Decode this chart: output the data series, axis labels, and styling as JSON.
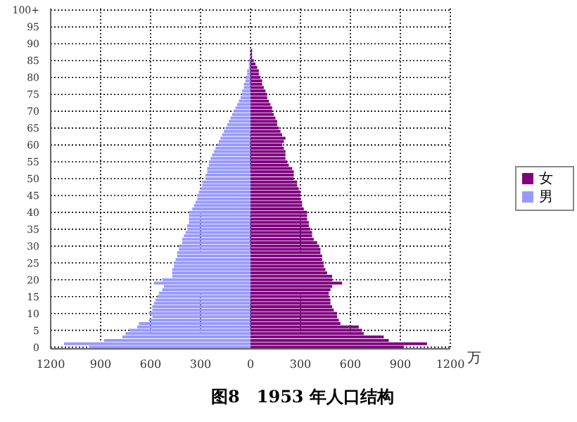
{
  "chart_data": {
    "type": "bar",
    "orientation": "horizontal",
    "stacked": true,
    "title": "图8　1953 年人口结构",
    "xlabel": "万",
    "categories": [
      "100+",
      null,
      null,
      null,
      null,
      "95",
      null,
      null,
      null,
      null,
      "90",
      null,
      null,
      null,
      null,
      "85",
      null,
      null,
      null,
      null,
      "80",
      null,
      null,
      null,
      null,
      "75",
      null,
      null,
      null,
      null,
      "70",
      null,
      null,
      null,
      null,
      "65",
      null,
      null,
      null,
      null,
      "60",
      null,
      null,
      null,
      null,
      "55",
      null,
      null,
      null,
      null,
      "50",
      null,
      null,
      null,
      null,
      "45",
      null,
      null,
      null,
      null,
      "40",
      null,
      null,
      null,
      null,
      "35",
      null,
      null,
      null,
      null,
      "30",
      null,
      null,
      null,
      null,
      "25",
      null,
      null,
      null,
      null,
      "20",
      null,
      null,
      null,
      null,
      "15",
      null,
      null,
      null,
      null,
      "10",
      null,
      null,
      null,
      null,
      "5",
      null,
      null,
      null,
      null,
      "0"
    ],
    "series": [
      {
        "name": "女",
        "color": "#800080",
        "values": [
          0,
          0,
          0,
          0,
          0,
          0,
          0,
          0,
          0,
          0,
          0,
          0,
          10,
          10,
          10,
          20,
          30,
          40,
          50,
          50,
          60,
          70,
          70,
          80,
          90,
          100,
          100,
          110,
          120,
          130,
          130,
          140,
          150,
          160,
          160,
          170,
          180,
          190,
          210,
          200,
          190,
          200,
          210,
          210,
          210,
          220,
          230,
          250,
          260,
          260,
          260,
          280,
          280,
          290,
          300,
          300,
          300,
          310,
          310,
          320,
          340,
          340,
          340,
          350,
          350,
          360,
          370,
          370,
          380,
          400,
          410,
          420,
          420,
          430,
          430,
          440,
          440,
          450,
          460,
          490,
          490,
          550,
          490,
          480,
          470,
          470,
          480,
          480,
          490,
          500,
          520,
          520,
          530,
          540,
          650,
          670,
          680,
          800,
          830,
          1060,
          920
        ]
      },
      {
        "name": "男",
        "color": "#9999ff",
        "values": [
          0,
          0,
          0,
          0,
          0,
          0,
          0,
          0,
          0,
          0,
          0,
          0,
          0,
          0,
          0,
          -10,
          -10,
          -10,
          -20,
          -20,
          -30,
          -30,
          -40,
          -40,
          -50,
          -50,
          -60,
          -70,
          -80,
          -90,
          -100,
          -110,
          -120,
          -130,
          -140,
          -150,
          -160,
          -170,
          -180,
          -190,
          -200,
          -210,
          -220,
          -230,
          -240,
          -250,
          -250,
          -260,
          -260,
          -270,
          -270,
          -290,
          -290,
          -300,
          -310,
          -320,
          -320,
          -330,
          -340,
          -350,
          -370,
          -370,
          -370,
          -370,
          -380,
          -380,
          -390,
          -400,
          -410,
          -410,
          -430,
          -430,
          -440,
          -440,
          -450,
          -460,
          -460,
          -470,
          -470,
          -470,
          -530,
          -580,
          -520,
          -530,
          -550,
          -560,
          -570,
          -580,
          -590,
          -590,
          -610,
          -590,
          -610,
          -670,
          -680,
          -730,
          -750,
          -770,
          -880,
          -1120,
          -970
        ]
      }
    ],
    "xlim": [
      -1200,
      1200
    ],
    "xticks": [
      {
        "value": -1200,
        "label": "1200"
      },
      {
        "value": -900,
        "label": "900"
      },
      {
        "value": -600,
        "label": "600"
      },
      {
        "value": -300,
        "label": "300"
      },
      0,
      300,
      600,
      900,
      1200
    ],
    "grid": true,
    "legend": "right"
  }
}
